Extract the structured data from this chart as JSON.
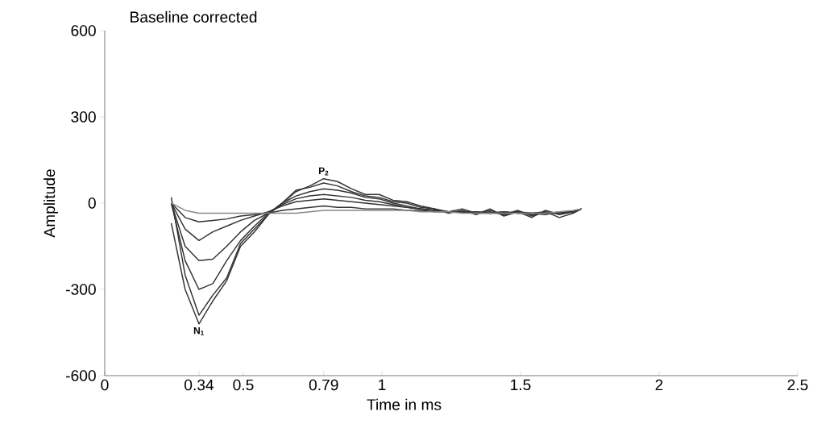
{
  "chart_data": {
    "type": "line",
    "title": "Baseline corrected",
    "xlabel": "Time in ms",
    "ylabel": "Amplitude",
    "x": [
      0.24,
      0.29,
      0.34,
      0.39,
      0.44,
      0.49,
      0.54,
      0.59,
      0.64,
      0.69,
      0.74,
      0.79,
      0.84,
      0.89,
      0.94,
      0.99,
      1.04,
      1.09,
      1.14,
      1.19,
      1.24,
      1.29,
      1.34,
      1.39,
      1.44,
      1.49,
      1.54,
      1.59,
      1.64,
      1.69,
      1.72
    ],
    "series": [
      {
        "color": "#333333",
        "values": [
          -70,
          -300,
          -420,
          -340,
          -270,
          -150,
          -100,
          -40,
          0,
          40,
          60,
          85,
          75,
          50,
          30,
          30,
          10,
          5,
          -10,
          -20,
          -30,
          -20,
          -35,
          -25,
          -40,
          -25,
          -45,
          -30,
          -50,
          -35,
          -20
        ]
      },
      {
        "color": "#333333",
        "values": [
          20,
          -250,
          -390,
          -320,
          -260,
          -140,
          -90,
          -40,
          0,
          45,
          55,
          70,
          60,
          40,
          25,
          20,
          5,
          0,
          -15,
          -20,
          -35,
          -25,
          -40,
          -20,
          -45,
          -30,
          -50,
          -25,
          -40,
          -30,
          -20
        ]
      },
      {
        "color": "#333333",
        "values": [
          0,
          -200,
          -300,
          -280,
          -200,
          -130,
          -80,
          -35,
          0,
          25,
          40,
          50,
          45,
          35,
          20,
          15,
          0,
          -10,
          -20,
          -25,
          -30,
          -30,
          -35,
          -30,
          -40,
          -30,
          -40,
          -35,
          -35,
          -30,
          -20
        ]
      },
      {
        "color": "#333333",
        "values": [
          0,
          -150,
          -200,
          -195,
          -150,
          -100,
          -60,
          -35,
          -5,
          15,
          25,
          30,
          25,
          20,
          10,
          5,
          -5,
          -15,
          -20,
          -25,
          -30,
          -30,
          -30,
          -35,
          -35,
          -30,
          -35,
          -40,
          -30,
          -30,
          -20
        ]
      },
      {
        "color": "#333333",
        "values": [
          0,
          -90,
          -130,
          -100,
          -80,
          -60,
          -45,
          -30,
          -10,
          5,
          10,
          15,
          10,
          5,
          0,
          -5,
          -10,
          -15,
          -20,
          -25,
          -30,
          -30,
          -30,
          -35,
          -30,
          -35,
          -35,
          -30,
          -35,
          -30,
          -20
        ]
      },
      {
        "color": "#333333",
        "values": [
          0,
          -50,
          -65,
          -60,
          -55,
          -45,
          -40,
          -35,
          -25,
          -20,
          -15,
          -10,
          -15,
          -15,
          -20,
          -20,
          -20,
          -25,
          -25,
          -30,
          -30,
          -30,
          -35,
          -35,
          -30,
          -35,
          -35,
          -35,
          -35,
          -30,
          -20
        ]
      },
      {
        "color": "#888888",
        "values": [
          0,
          -25,
          -35,
          -35,
          -35,
          -35,
          -35,
          -35,
          -35,
          -35,
          -30,
          -25,
          -25,
          -25,
          -25,
          -25,
          -25,
          -25,
          -30,
          -30,
          -30,
          -35,
          -35,
          -35,
          -35,
          -35,
          -35,
          -35,
          -30,
          -25,
          -20
        ]
      }
    ],
    "xlim": [
      0,
      2.5
    ],
    "ylim": [
      -600,
      600
    ],
    "xticks": [
      0,
      0.34,
      0.5,
      0.79,
      1,
      1.5,
      2,
      2.5
    ],
    "yticks": [
      -600,
      -300,
      0,
      300,
      600
    ],
    "annotations": [
      {
        "text": "N$_{1}$",
        "x": 0.34,
        "y": -420
      },
      {
        "text": "P$_{2}$",
        "x": 0.79,
        "y": 85
      }
    ],
    "grid": false,
    "marker": "none",
    "line_style": "solid"
  }
}
